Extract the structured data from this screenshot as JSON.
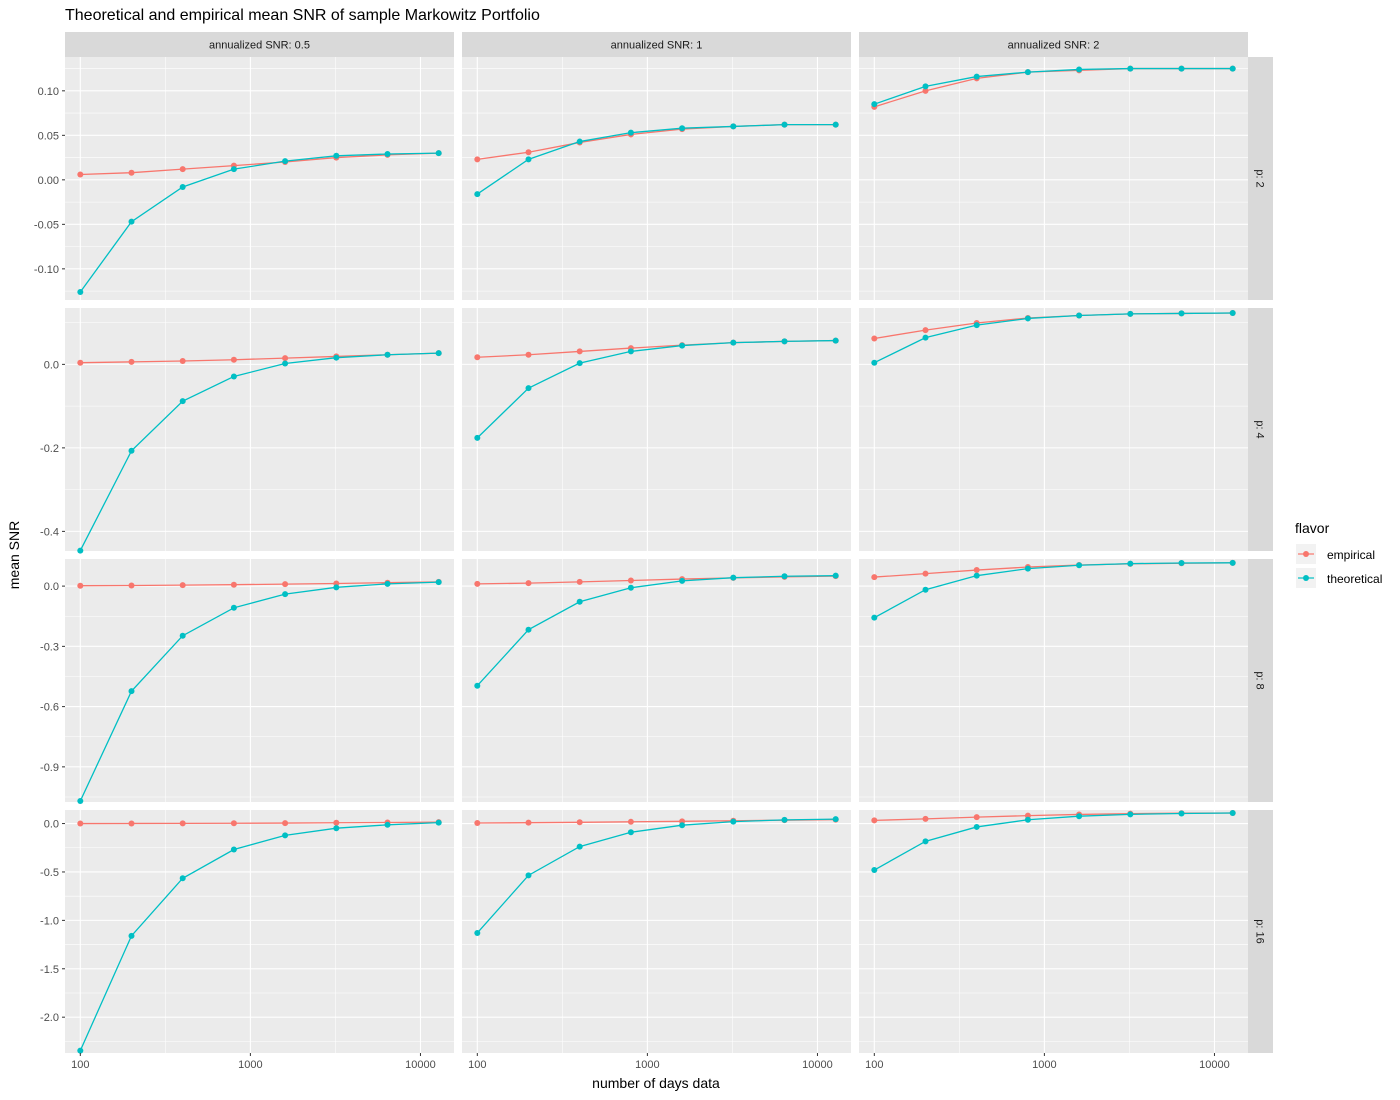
{
  "chart_data": {
    "type": "line",
    "title": "Theoretical and empirical mean SNR of sample Markowitz Portfolio",
    "xlabel": "number of days data",
    "ylabel": "mean SNR",
    "x_scale": "log10",
    "x": [
      100,
      200,
      400,
      800,
      1600,
      3200,
      6400,
      12800
    ],
    "x_ticks": [
      100,
      1000,
      10000
    ],
    "x_tick_labels": [
      "100",
      "1000",
      "10000"
    ],
    "col_facets": [
      "annualized SNR: 0.5",
      "annualized SNR: 1",
      "annualized SNR: 2"
    ],
    "row_facets": [
      "p: 2",
      "p: 4",
      "p: 8",
      "p: 16"
    ],
    "legend": {
      "title": "flavor",
      "position": "right",
      "entries": [
        {
          "name": "empirical",
          "color": "#F8766D"
        },
        {
          "name": "theoretical",
          "color": "#00BFC4"
        }
      ]
    },
    "rows": [
      {
        "ylim": [
          -0.135,
          0.138
        ],
        "y_ticks": [
          -0.1,
          -0.05,
          0.0,
          0.05,
          0.1
        ],
        "y_tick_labels": [
          "-0.10",
          "-0.05",
          "0.00",
          "0.05",
          "0.10"
        ],
        "panels": [
          {
            "empirical": [
              0.006,
              0.008,
              0.012,
              0.016,
              0.02,
              0.025,
              0.028,
              0.03
            ],
            "theoretical": [
              -0.126,
              -0.047,
              -0.008,
              0.012,
              0.021,
              0.027,
              0.029,
              0.03
            ]
          },
          {
            "empirical": [
              0.023,
              0.031,
              0.042,
              0.051,
              0.057,
              0.06,
              0.062,
              0.062
            ],
            "theoretical": [
              -0.016,
              0.023,
              0.043,
              0.053,
              0.058,
              0.06,
              0.062,
              0.062
            ]
          },
          {
            "empirical": [
              0.082,
              0.1,
              0.114,
              0.121,
              0.123,
              0.125,
              0.125,
              0.125
            ],
            "theoretical": [
              0.085,
              0.105,
              0.116,
              0.121,
              0.124,
              0.125,
              0.125,
              0.125
            ]
          }
        ]
      },
      {
        "ylim": [
          -0.447,
          0.135
        ],
        "y_ticks": [
          -0.4,
          -0.2,
          0.0
        ],
        "y_tick_labels": [
          "-0.4",
          "-0.2",
          "0.0"
        ],
        "panels": [
          {
            "empirical": [
              0.004,
              0.006,
              0.008,
              0.011,
              0.015,
              0.019,
              0.023,
              0.027
            ],
            "theoretical": [
              -0.446,
              -0.207,
              -0.088,
              -0.029,
              0.002,
              0.016,
              0.023,
              0.027
            ]
          },
          {
            "empirical": [
              0.017,
              0.023,
              0.031,
              0.039,
              0.046,
              0.052,
              0.055,
              0.057
            ],
            "theoretical": [
              -0.176,
              -0.057,
              0.003,
              0.031,
              0.045,
              0.052,
              0.055,
              0.057
            ]
          },
          {
            "empirical": [
              0.062,
              0.082,
              0.099,
              0.111,
              0.117,
              0.121,
              0.122,
              0.123
            ],
            "theoretical": [
              0.004,
              0.064,
              0.094,
              0.11,
              0.117,
              0.121,
              0.122,
              0.123
            ]
          }
        ]
      },
      {
        "ylim": [
          -1.075,
          0.135
        ],
        "y_ticks": [
          -0.9,
          -0.6,
          -0.3,
          0.0
        ],
        "y_tick_labels": [
          "-0.9",
          "-0.6",
          "-0.3",
          "0.0"
        ],
        "panels": [
          {
            "empirical": [
              0.002,
              0.003,
              0.005,
              0.007,
              0.01,
              0.013,
              0.017,
              0.021
            ],
            "theoretical": [
              -1.07,
              -0.523,
              -0.247,
              -0.108,
              -0.04,
              -0.006,
              0.011,
              0.02
            ]
          },
          {
            "empirical": [
              0.011,
              0.015,
              0.021,
              0.028,
              0.035,
              0.041,
              0.046,
              0.05
            ],
            "theoretical": [
              -0.496,
              -0.217,
              -0.078,
              -0.008,
              0.026,
              0.042,
              0.049,
              0.052
            ]
          },
          {
            "empirical": [
              0.045,
              0.062,
              0.08,
              0.095,
              0.105,
              0.111,
              0.114,
              0.116
            ],
            "theoretical": [
              -0.157,
              -0.018,
              0.052,
              0.087,
              0.104,
              0.112,
              0.115,
              0.116
            ]
          }
        ]
      },
      {
        "ylim": [
          -2.37,
          0.14
        ],
        "y_ticks": [
          -2.0,
          -1.5,
          -1.0,
          -0.5,
          0.0
        ],
        "y_tick_labels": [
          "-2.0",
          "-1.5",
          "-1.0",
          "-0.5",
          "0.0"
        ],
        "panels": [
          {
            "empirical": [
              0.0,
              0.001,
              0.002,
              0.003,
              0.005,
              0.008,
              0.011,
              0.015
            ],
            "theoretical": [
              -2.345,
              -1.16,
              -0.565,
              -0.268,
              -0.122,
              -0.048,
              -0.013,
              0.01
            ]
          },
          {
            "empirical": [
              0.006,
              0.009,
              0.013,
              0.018,
              0.023,
              0.029,
              0.035,
              0.041
            ],
            "theoretical": [
              -1.13,
              -0.535,
              -0.238,
              -0.09,
              -0.017,
              0.02,
              0.038,
              0.046
            ]
          },
          {
            "empirical": [
              0.033,
              0.048,
              0.066,
              0.082,
              0.094,
              0.102,
              0.107,
              0.109
            ],
            "theoretical": [
              -0.48,
              -0.184,
              -0.035,
              0.039,
              0.076,
              0.095,
              0.104,
              0.109
            ]
          }
        ]
      }
    ]
  }
}
